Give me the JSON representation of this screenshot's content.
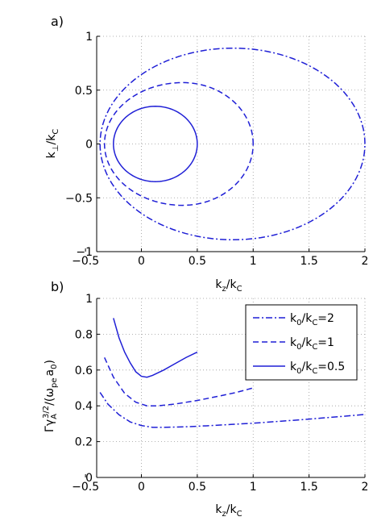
{
  "chart_data": [
    {
      "panel_label": "a)",
      "type": "line",
      "xlabel": {
        "base": "k",
        "sub": "z",
        "mid": "/k",
        "sub2": "C"
      },
      "ylabel": {
        "base": "k",
        "sub": "⊥",
        "mid": "/k",
        "sub2": "C"
      },
      "xlim": [
        -0.4,
        2.0
      ],
      "ylim": [
        -1,
        1
      ],
      "xticks": [
        -0.5,
        0,
        0.5,
        1,
        1.5,
        2
      ],
      "xticklabels": [
        "−0.5",
        "0",
        "0.5",
        "1",
        "1.5",
        "2"
      ],
      "yticks": [
        -1,
        -0.5,
        0,
        0.5,
        1
      ],
      "yticklabels": [
        "−1",
        "−0.5",
        "0",
        "0.5",
        "1"
      ],
      "grid": true,
      "series": [
        {
          "style": "dashdot",
          "color": "#1f1fd6",
          "shape": "closed_curve",
          "x_min": -0.37,
          "x_max": 2.0,
          "y_half_height": 0.89,
          "x_at_max_height": 0.82
        },
        {
          "style": "dashed",
          "color": "#1f1fd6",
          "shape": "closed_curve",
          "x_min": -0.33,
          "x_max": 1.0,
          "y_half_height": 0.57,
          "x_at_max_height": 0.37
        },
        {
          "style": "solid",
          "color": "#1f1fd6",
          "shape": "closed_curve",
          "x_min": -0.25,
          "x_max": 0.5,
          "y_half_height": 0.35,
          "x_at_max_height": 0.125
        }
      ]
    },
    {
      "panel_label": "b)",
      "type": "line",
      "xlabel": {
        "base": "k",
        "sub": "z",
        "mid": "/k",
        "sub2": "C"
      },
      "ylabel": {
        "pre": "Γγ",
        "sub": "A",
        "sup": "3/2",
        "mid": "/(ω",
        "sub2": "pe",
        "mid2": "a",
        "sub3": "0",
        "post": ")"
      },
      "xlim": [
        -0.4,
        2.0
      ],
      "ylim": [
        0,
        1
      ],
      "xticks": [
        -0.5,
        0,
        0.5,
        1,
        1.5,
        2
      ],
      "xticklabels": [
        "−0.5",
        "0",
        "0.5",
        "1",
        "1.5",
        "2"
      ],
      "yticks": [
        0,
        0.2,
        0.4,
        0.6,
        0.8,
        1
      ],
      "yticklabels": [
        "0",
        "0.2",
        "0.4",
        "0.6",
        "0.8",
        "1"
      ],
      "grid": true,
      "legend_position": "top-right",
      "series": [
        {
          "name": {
            "base": "k",
            "sub": "0",
            "mid": "/k",
            "sub2": "C",
            "post": "=2"
          },
          "style": "dashdot",
          "color": "#1f1fd6",
          "x": [
            -0.37,
            -0.3,
            -0.2,
            -0.1,
            0.0,
            0.1,
            0.2,
            0.4,
            0.6,
            0.8,
            1.0,
            1.2,
            1.4,
            1.6,
            1.8,
            2.0
          ],
          "y": [
            0.475,
            0.41,
            0.35,
            0.31,
            0.29,
            0.28,
            0.28,
            0.283,
            0.289,
            0.296,
            0.303,
            0.312,
            0.321,
            0.331,
            0.341,
            0.352
          ]
        },
        {
          "name": {
            "base": "k",
            "sub": "0",
            "mid": "/k",
            "sub2": "C",
            "post": "=1"
          },
          "style": "dashed",
          "color": "#1f1fd6",
          "x": [
            -0.33,
            -0.25,
            -0.15,
            -0.05,
            0.05,
            0.15,
            0.3,
            0.5,
            0.7,
            0.85,
            1.0
          ],
          "y": [
            0.67,
            0.56,
            0.47,
            0.42,
            0.4,
            0.4,
            0.41,
            0.43,
            0.455,
            0.475,
            0.5
          ]
        },
        {
          "name": {
            "base": "k",
            "sub": "0",
            "mid": "/k",
            "sub2": "C",
            "post": "=0.5"
          },
          "style": "solid",
          "color": "#1f1fd6",
          "x": [
            -0.25,
            -0.2,
            -0.15,
            -0.1,
            -0.05,
            0.0,
            0.05,
            0.1,
            0.2,
            0.3,
            0.4,
            0.5
          ],
          "y": [
            0.89,
            0.78,
            0.7,
            0.64,
            0.59,
            0.565,
            0.56,
            0.57,
            0.6,
            0.635,
            0.67,
            0.7
          ]
        }
      ]
    }
  ]
}
